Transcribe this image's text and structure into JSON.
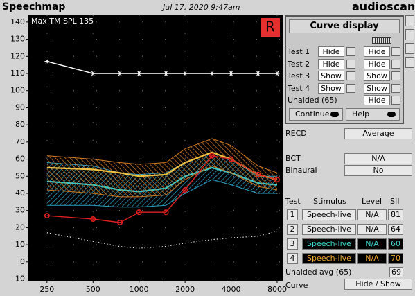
{
  "header": {
    "title": "Speechmap",
    "datetime": "Jul 17, 2020 9:47am",
    "brand": "audioscan"
  },
  "chart_data": {
    "type": "line",
    "annotation": "Max TM SPL 135",
    "ear": "R",
    "x": [
      250,
      500,
      750,
      1000,
      1500,
      2000,
      3000,
      4000,
      6000,
      8000
    ],
    "xlim": [
      187,
      8700
    ],
    "xticks": [
      250,
      500,
      1000,
      2000,
      4000,
      8000
    ],
    "log_x": true,
    "ylim": [
      -11,
      144
    ],
    "yticks": [
      -10,
      0,
      10,
      20,
      30,
      40,
      50,
      60,
      70,
      80,
      90,
      100,
      110,
      120,
      130,
      140
    ],
    "grid": true,
    "series": [
      {
        "color": "#ffffff",
        "marker": "star",
        "values": [
          117,
          110,
          110,
          110,
          110,
          110,
          110,
          110,
          110,
          110
        ]
      },
      {
        "color": "#ffffff",
        "style": "dotted",
        "values": [
          17,
          12,
          9,
          8,
          9,
          11,
          13,
          14,
          15,
          18
        ]
      },
      {
        "color": "#38c8c8",
        "band_color": "#2a9fc0",
        "values": [
          47,
          45,
          42,
          41,
          43,
          50,
          55,
          52,
          46,
          45
        ],
        "upper": [
          58,
          56,
          52,
          51,
          52,
          58,
          64,
          60,
          50,
          50
        ],
        "lower": [
          33,
          33,
          32,
          32,
          33,
          40,
          48,
          45,
          40,
          40
        ]
      },
      {
        "color": "#f0c040",
        "band_color": "#d07a20",
        "values": [
          55,
          54,
          52,
          50,
          51,
          58,
          64,
          60,
          51,
          48
        ],
        "upper": [
          62,
          60,
          58,
          57,
          58,
          66,
          72,
          68,
          56,
          52
        ],
        "lower": [
          42,
          40,
          38,
          38,
          39,
          48,
          56,
          52,
          44,
          42
        ]
      },
      {
        "color": "#e02020",
        "marker": "circle",
        "values": [
          27,
          25,
          23,
          29,
          29,
          42,
          62,
          60,
          51,
          48
        ]
      }
    ]
  },
  "popup": {
    "title": "Curve display",
    "rows": [
      {
        "label": "Test 1",
        "left": "Hide",
        "right": "Hide"
      },
      {
        "label": "Test 2",
        "left": "Hide",
        "right": "Hide"
      },
      {
        "label": "Test 3",
        "left": "Show",
        "right": "Show"
      },
      {
        "label": "Test 4",
        "left": "Show",
        "right": "Show"
      },
      {
        "label": "Unaided (65)",
        "right": "Hide"
      }
    ],
    "buttons": [
      "Continue",
      "Help"
    ]
  },
  "panel": {
    "recd": {
      "label": "RECD",
      "value": "Average"
    },
    "bct": {
      "label": "BCT",
      "value": "N/A"
    },
    "binaural": {
      "label": "Binaural",
      "value": "No"
    },
    "table": {
      "headers": [
        "Test",
        "Stimulus",
        "Level",
        "SII"
      ],
      "rows": [
        [
          1,
          "Speech-live",
          "N/A",
          81
        ],
        [
          2,
          "Speech-live",
          "N/A",
          64
        ],
        [
          3,
          "Speech-live",
          "N/A",
          60
        ],
        [
          4,
          "Speech-live",
          "N/A",
          70
        ]
      ]
    },
    "unaided": {
      "label": "Unaided avg (65)",
      "value": 69
    },
    "curve": {
      "label": "Curve",
      "value": "Hide / Show"
    }
  }
}
